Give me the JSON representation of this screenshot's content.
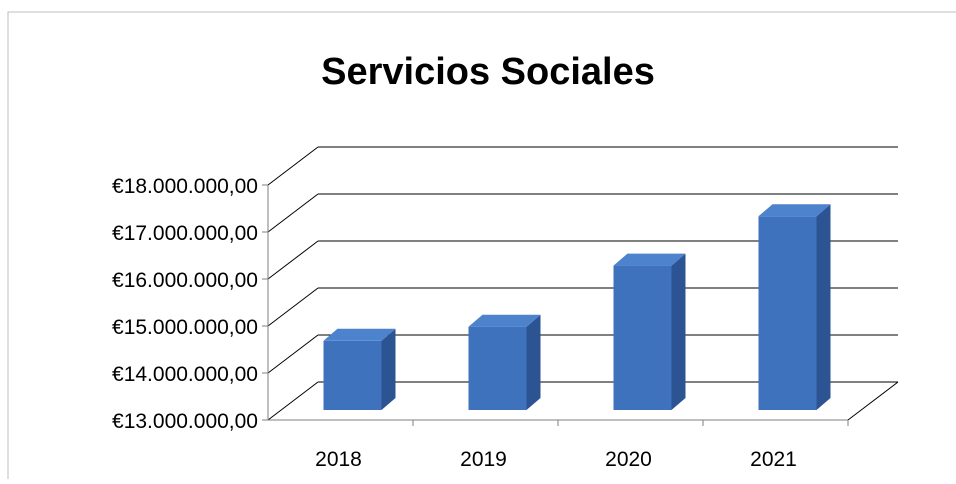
{
  "chart_data": {
    "type": "bar",
    "title": "Servicios Sociales",
    "categories": [
      "2018",
      "2019",
      "2020",
      "2021"
    ],
    "values": [
      14600000,
      14900000,
      16200000,
      17250000
    ],
    "ylim": [
      13000000,
      18000000
    ],
    "y_ticks": [
      {
        "value": 13000000,
        "label": "€13.000.000,00"
      },
      {
        "value": 14000000,
        "label": "€14.000.000,00"
      },
      {
        "value": 15000000,
        "label": "€15.000.000,00"
      },
      {
        "value": 16000000,
        "label": "€16.000.000,00"
      },
      {
        "value": 17000000,
        "label": "€17.000.000,00"
      },
      {
        "value": 18000000,
        "label": "€18.000.000,00"
      }
    ],
    "grid": true,
    "style": "3d-column",
    "colors": {
      "bar_front": "#3f72bd",
      "bar_side": "#2c5492",
      "bar_top": "#4d82cc",
      "grid": "#000000"
    }
  }
}
